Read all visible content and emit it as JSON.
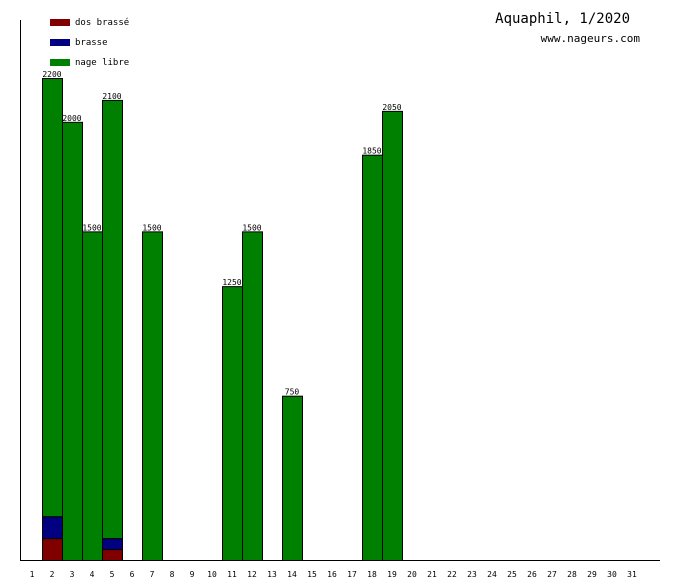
{
  "chart_data": {
    "type": "bar",
    "stacked": true,
    "title": "Aquaphil, 1/2020",
    "subtitle": "www.nageurs.com",
    "xlabel": "",
    "ylabel": "",
    "ylim": [
      0,
      2200
    ],
    "categories": [
      "1",
      "2",
      "3",
      "4",
      "5",
      "6",
      "7",
      "8",
      "9",
      "10",
      "11",
      "12",
      "13",
      "14",
      "15",
      "16",
      "17",
      "18",
      "19",
      "20",
      "21",
      "22",
      "23",
      "24",
      "25",
      "26",
      "27",
      "28",
      "29",
      "30",
      "31"
    ],
    "series": [
      {
        "name": "dos brassé",
        "color": "#800000",
        "values": [
          0,
          100,
          0,
          0,
          50,
          0,
          0,
          0,
          0,
          0,
          0,
          0,
          0,
          0,
          0,
          0,
          0,
          0,
          0,
          0,
          0,
          0,
          0,
          0,
          0,
          0,
          0,
          0,
          0,
          0,
          0
        ]
      },
      {
        "name": "brasse",
        "color": "#000080",
        "values": [
          0,
          100,
          0,
          0,
          50,
          0,
          0,
          0,
          0,
          0,
          0,
          0,
          0,
          0,
          0,
          0,
          0,
          0,
          0,
          0,
          0,
          0,
          0,
          0,
          0,
          0,
          0,
          0,
          0,
          0,
          0
        ]
      },
      {
        "name": "nage libre",
        "color": "#008000",
        "values": [
          0,
          2000,
          2000,
          1500,
          2000,
          0,
          1500,
          0,
          0,
          0,
          1250,
          1500,
          0,
          750,
          0,
          0,
          0,
          1850,
          2050,
          0,
          0,
          0,
          0,
          0,
          0,
          0,
          0,
          0,
          0,
          0,
          0
        ]
      }
    ],
    "totals": [
      null,
      "2200",
      "2000",
      "1500",
      "2100",
      null,
      "1500",
      null,
      null,
      null,
      "1250",
      "1500",
      null,
      "750",
      null,
      null,
      null,
      "1850",
      "2050",
      null,
      null,
      null,
      null,
      null,
      null,
      null,
      null,
      null,
      null,
      null,
      null
    ],
    "legend_position": "top-left",
    "grid": false
  }
}
